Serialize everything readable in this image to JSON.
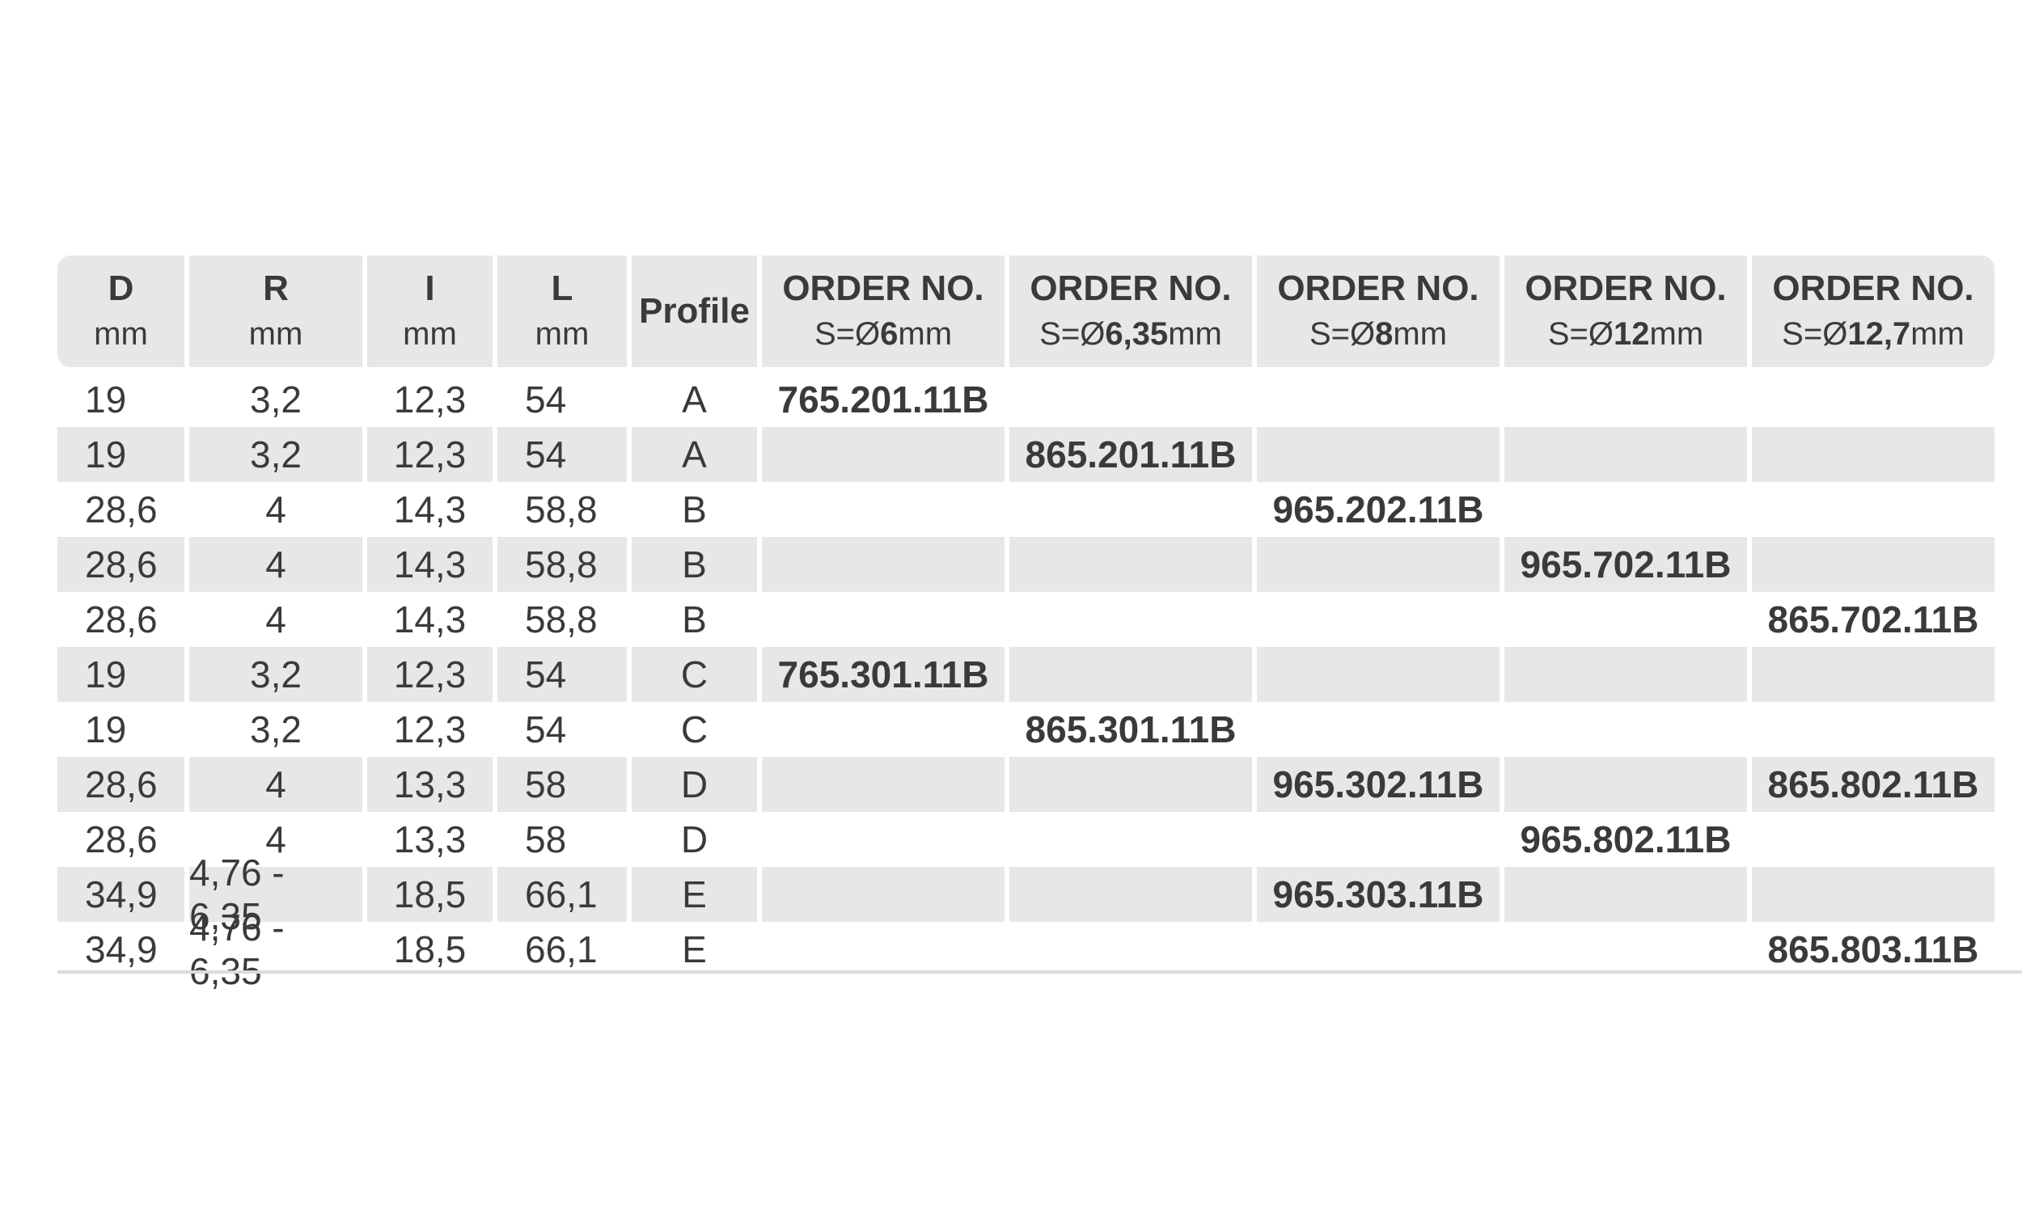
{
  "table": {
    "header": [
      {
        "label": "D",
        "unit": "mm"
      },
      {
        "label": "R",
        "unit": "mm"
      },
      {
        "label": "I",
        "unit": "mm"
      },
      {
        "label": "L",
        "unit": "mm"
      },
      {
        "label": "Profile"
      },
      {
        "label": "ORDER NO.",
        "prefix": "S=Ø",
        "size": "6",
        "unit": "mm"
      },
      {
        "label": "ORDER NO.",
        "prefix": "S=Ø",
        "size": "6,35",
        "unit": "mm"
      },
      {
        "label": "ORDER NO.",
        "prefix": "S=Ø",
        "size": "8",
        "unit": "mm"
      },
      {
        "label": "ORDER NO.",
        "prefix": "S=Ø",
        "size": "12",
        "unit": "mm"
      },
      {
        "label": "ORDER NO.",
        "prefix": "S=Ø",
        "size": "12,7",
        "unit": "mm"
      }
    ],
    "rows": [
      {
        "cells": [
          "19",
          "3,2",
          "12,3",
          "54",
          "A"
        ],
        "orders": [
          "765.201.11B",
          null,
          null,
          null,
          null
        ]
      },
      {
        "cells": [
          "19",
          "3,2",
          "12,3",
          "54",
          "A"
        ],
        "orders": [
          null,
          "865.201.11B",
          null,
          null,
          null
        ]
      },
      {
        "cells": [
          "28,6",
          "4",
          "14,3",
          "58,8",
          "B"
        ],
        "orders": [
          null,
          null,
          "965.202.11B",
          null,
          null
        ]
      },
      {
        "cells": [
          "28,6",
          "4",
          "14,3",
          "58,8",
          "B"
        ],
        "orders": [
          null,
          null,
          null,
          "965.702.11B",
          null
        ]
      },
      {
        "cells": [
          "28,6",
          "4",
          "14,3",
          "58,8",
          "B"
        ],
        "orders": [
          null,
          null,
          null,
          null,
          "865.702.11B"
        ]
      },
      {
        "cells": [
          "19",
          "3,2",
          "12,3",
          "54",
          "C"
        ],
        "orders": [
          "765.301.11B",
          null,
          null,
          null,
          null
        ]
      },
      {
        "cells": [
          "19",
          "3,2",
          "12,3",
          "54",
          "C"
        ],
        "orders": [
          null,
          "865.301.11B",
          null,
          null,
          null
        ]
      },
      {
        "cells": [
          "28,6",
          "4",
          "13,3",
          "58",
          "D"
        ],
        "orders": [
          null,
          null,
          "965.302.11B",
          null,
          "865.802.11B"
        ]
      },
      {
        "cells": [
          "28,6",
          "4",
          "13,3",
          "58",
          "D"
        ],
        "orders": [
          null,
          null,
          null,
          "965.802.11B",
          null
        ]
      },
      {
        "cells": [
          "34,9",
          "4,76 - 6,35",
          "18,5",
          "66,1",
          "E"
        ],
        "orders": [
          null,
          null,
          "965.303.11B",
          null,
          null
        ]
      },
      {
        "cells": [
          "34,9",
          "4,76 - 6,35",
          "18,5",
          "66,1",
          "E"
        ],
        "orders": [
          null,
          null,
          null,
          null,
          "865.803.11B"
        ]
      }
    ]
  }
}
